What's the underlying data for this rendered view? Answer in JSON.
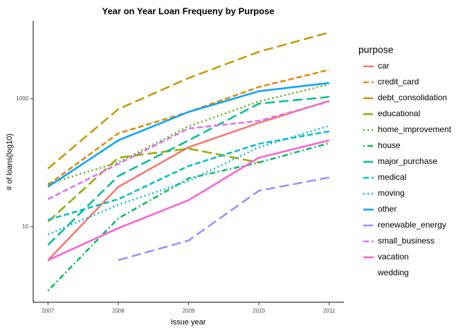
{
  "chart_data": {
    "type": "line",
    "title": "Year on Year Loan Frequeny by Purpose",
    "x_label": "Issue year",
    "y_label": "# of loans(log10)",
    "legend_title": "purpose",
    "legend_position": "right",
    "x": [
      2007,
      2008,
      2009,
      2010,
      2011
    ],
    "xlim": [
      2006.79,
      2011.21
    ],
    "xticks": [
      2007,
      2008,
      2009,
      2010,
      2011
    ],
    "y_scale": "log",
    "ylim": [
      0.66,
      16600
    ],
    "yticks": [
      10,
      1000
    ],
    "grid": false,
    "series": [
      {
        "name": "car",
        "color": "#F8766D",
        "linetype": "solid",
        "values": [
          3.0,
          42,
          175,
          420,
          930
        ]
      },
      {
        "name": "credit_card",
        "color": "#E38900",
        "linetype": "dashed",
        "values": [
          45,
          288,
          623,
          1530,
          2840
        ]
      },
      {
        "name": "debt_consolidation",
        "color": "#C49A00",
        "linetype": "longdash",
        "values": [
          81,
          689,
          2110,
          5430,
          10900
        ]
      },
      {
        "name": "educational",
        "color": "#99A800",
        "linetype": "longdash",
        "values": [
          12,
          120,
          167,
          101,
          null
        ]
      },
      {
        "name": "home_improvement",
        "color": "#53B400",
        "linetype": "dotted",
        "values": [
          47,
          101,
          371,
          908,
          1680
        ]
      },
      {
        "name": "house",
        "color": "#00BC56",
        "linetype": "dotdash",
        "values": [
          1.0,
          13.5,
          57,
          101,
          203
        ]
      },
      {
        "name": "major_purchase",
        "color": "#00C094",
        "linetype": "longdash",
        "values": [
          5.2,
          62,
          224,
          840,
          1070
        ]
      },
      {
        "name": "medical",
        "color": "#00BFC4",
        "linetype": "dashed",
        "values": [
          12.8,
          27,
          89,
          198,
          310
        ]
      },
      {
        "name": "moving",
        "color": "#00B6EB",
        "linetype": "dotted",
        "values": [
          7.6,
          22,
          52,
          175,
          378
        ]
      },
      {
        "name": "other",
        "color": "#06A4FF",
        "linetype": "solid",
        "values": [
          42,
          224,
          623,
          1315,
          1770
        ]
      },
      {
        "name": "renewable_energy",
        "color": "#A58AFF",
        "linetype": "longdash",
        "values": [
          null,
          3.0,
          6.1,
          36.5,
          59
        ]
      },
      {
        "name": "small_business",
        "color": "#DF70F8",
        "linetype": "dashed",
        "values": [
          27,
          96,
          343,
          451,
          906
        ]
      },
      {
        "name": "vacation",
        "color": "#FB61D7",
        "linetype": "solid",
        "values": [
          3.0,
          9.5,
          26,
          120,
          224
        ]
      },
      {
        "name": "wedding",
        "values": [
          null,
          null,
          null,
          null,
          null
        ]
      }
    ]
  }
}
